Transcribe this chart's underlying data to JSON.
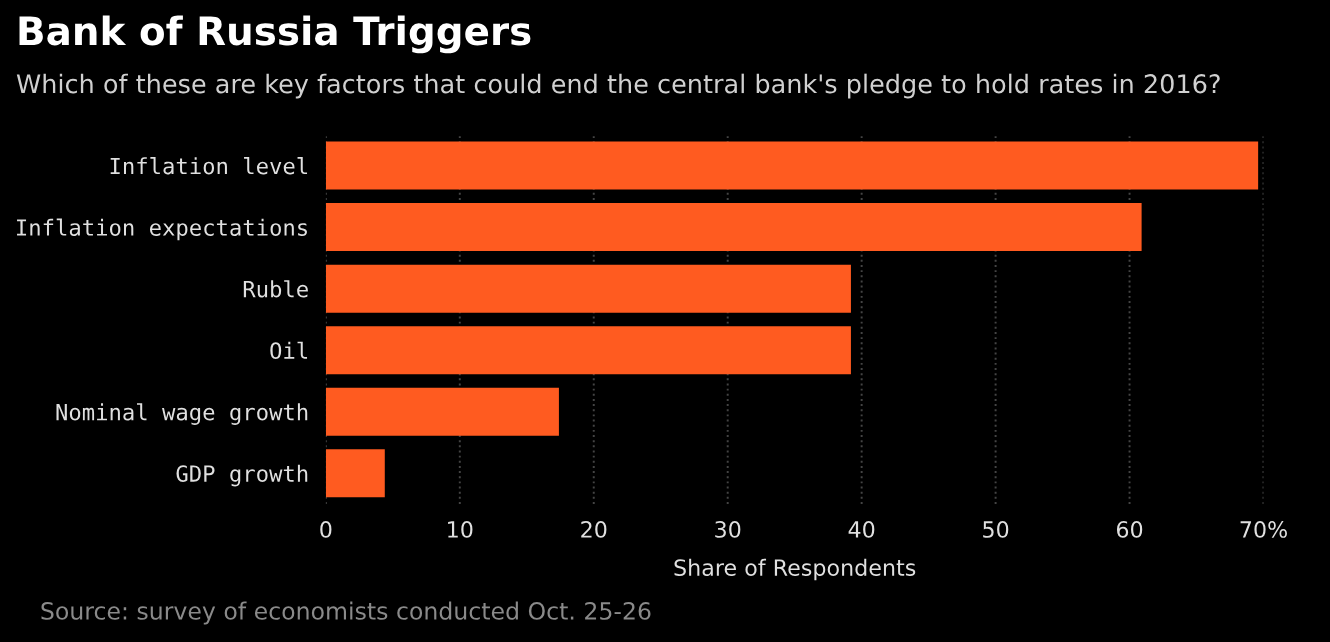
{
  "chart_data": {
    "type": "bar",
    "orientation": "horizontal",
    "title": "Bank of Russia Triggers",
    "subtitle": "Which of these are key factors that could end the central bank's pledge to hold rates in 2016?",
    "xlabel": "Share of Respondents",
    "categories": [
      "Inflation level",
      "Inflation expectations",
      "Ruble",
      "Oil",
      "Nominal wage growth",
      "GDP growth"
    ],
    "values": [
      69.6,
      60.9,
      39.2,
      39.2,
      17.4,
      4.4
    ],
    "color": "#ff5b20",
    "xlim": [
      0,
      70
    ],
    "xticks": [
      0,
      10,
      20,
      30,
      40,
      50,
      60,
      {
        "value": 70,
        "label": "70%"
      }
    ],
    "grid": "x",
    "annotations": [
      "Source: survey of economists conducted Oct. 25-26"
    ]
  }
}
